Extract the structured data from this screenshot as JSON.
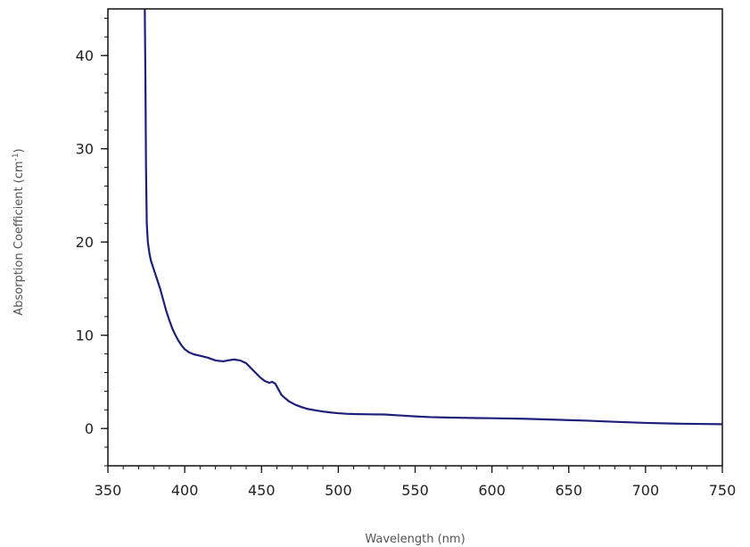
{
  "chart_data": {
    "type": "line",
    "title": "",
    "xlabel": "Wavelength (nm)",
    "ylabel": {
      "main": "Absorption Coefficient (cm",
      "superscript": "-1",
      "suffix": ")"
    },
    "xlim": [
      350,
      750
    ],
    "ylim": [
      -4,
      45
    ],
    "xticks": [
      350,
      400,
      450,
      500,
      550,
      600,
      650,
      700,
      750
    ],
    "yticks": [
      0,
      10,
      20,
      30,
      40
    ],
    "x_minor_step": 10,
    "y_minor_step": 2,
    "grid": false,
    "legend": "none",
    "series": [
      {
        "color": "#1f1f7a",
        "x": [
          374.0,
          374.4,
          374.8,
          375.3,
          376,
          377,
          378,
          380,
          382,
          384,
          386,
          388,
          390,
          392,
          394,
          396,
          398,
          400,
          403,
          406,
          410,
          415,
          420,
          425,
          428,
          432,
          436,
          440,
          443,
          446,
          449,
          452,
          455,
          457,
          459,
          461,
          463,
          465,
          468,
          472,
          476,
          480,
          485,
          490,
          495,
          500,
          505,
          510,
          520,
          530,
          540,
          550,
          560,
          570,
          580,
          590,
          600,
          620,
          640,
          660,
          680,
          700,
          720,
          740,
          750
        ],
        "y": [
          45.0,
          38.0,
          28.0,
          22.0,
          20.0,
          18.8,
          18.0,
          17.0,
          16.0,
          15.0,
          13.8,
          12.6,
          11.6,
          10.7,
          10.0,
          9.4,
          8.9,
          8.5,
          8.15,
          7.95,
          7.8,
          7.6,
          7.3,
          7.2,
          7.3,
          7.4,
          7.3,
          7.0,
          6.5,
          6.0,
          5.5,
          5.1,
          4.9,
          5.0,
          4.8,
          4.2,
          3.6,
          3.3,
          2.9,
          2.55,
          2.3,
          2.1,
          1.95,
          1.82,
          1.72,
          1.64,
          1.58,
          1.55,
          1.52,
          1.5,
          1.4,
          1.3,
          1.22,
          1.18,
          1.15,
          1.12,
          1.1,
          1.05,
          0.95,
          0.85,
          0.72,
          0.6,
          0.52,
          0.48,
          0.46
        ]
      }
    ]
  }
}
